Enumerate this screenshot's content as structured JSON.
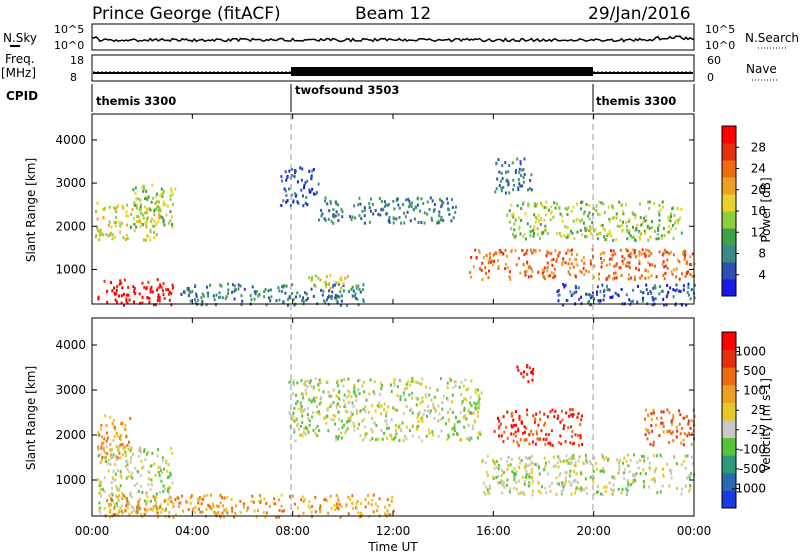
{
  "header": {
    "station": "Prince George (fitACF)",
    "beam": "Beam 12",
    "date": "29/Jan/2016"
  },
  "strip_labels": {
    "nsky": "N.Sky",
    "nsearch": "N.Search",
    "freq": "Freq.",
    "mhz": "[MHz]",
    "nave": "Nave",
    "cpid": "CPID",
    "nsky_ticks": [
      "10^5",
      "10^0"
    ],
    "freq_ticks": [
      "18",
      "8"
    ],
    "nave_ticks": [
      "60",
      "0"
    ]
  },
  "cpid_segments": [
    {
      "label": "themis 3300",
      "start_h": 0,
      "end_h": 8
    },
    {
      "label": "twofsound 3503",
      "start_h": 8,
      "end_h": 20
    },
    {
      "label": "themis 3300",
      "start_h": 20,
      "end_h": 24
    }
  ],
  "chart_data": [
    {
      "type": "heatmap",
      "name": "power",
      "xlabel": "Time UT",
      "ylabel": "Slant Range [km]",
      "xlim": [
        0,
        24
      ],
      "ylim": [
        200,
        4600
      ],
      "x_ticks": [
        "00:00",
        "04:00",
        "08:00",
        "12:00",
        "16:00",
        "20:00",
        "00:00"
      ],
      "y_ticks": [
        1000,
        2000,
        3000,
        4000
      ],
      "colorbar": {
        "label": "Power [dB]",
        "ticks": [
          4,
          8,
          12,
          16,
          20,
          24,
          28
        ],
        "colors": [
          "#1a1ae6",
          "#2f4fb0",
          "#3a8a8a",
          "#3ea04a",
          "#8ccf3a",
          "#e6d22a",
          "#f0a020",
          "#f06a10",
          "#e62e10",
          "#ff0000"
        ]
      },
      "regions": [
        {
          "t": [
            0.2,
            3.2
          ],
          "r": [
            200,
            800
          ],
          "level": 9
        },
        {
          "t": [
            0.1,
            2.7
          ],
          "r": [
            1700,
            2600
          ],
          "level": 5
        },
        {
          "t": [
            1.5,
            3.3
          ],
          "r": [
            2000,
            3000
          ],
          "level": 4
        },
        {
          "t": [
            3.5,
            11.0
          ],
          "r": [
            200,
            700
          ],
          "level": 2
        },
        {
          "t": [
            8.5,
            10.5
          ],
          "r": [
            600,
            900
          ],
          "level": 5
        },
        {
          "t": [
            7.5,
            9.0
          ],
          "r": [
            2500,
            3400
          ],
          "level": 1
        },
        {
          "t": [
            9.0,
            14.5
          ],
          "r": [
            2100,
            2700
          ],
          "level": 2
        },
        {
          "t": [
            15.0,
            24.0
          ],
          "r": [
            800,
            1500
          ],
          "level": 7
        },
        {
          "t": [
            16.5,
            23.5
          ],
          "r": [
            1700,
            2600
          ],
          "level": 4
        },
        {
          "t": [
            16.0,
            17.5
          ],
          "r": [
            2800,
            3600
          ],
          "level": 2
        },
        {
          "t": [
            18.5,
            24.0
          ],
          "r": [
            200,
            700
          ],
          "level": 1
        }
      ]
    },
    {
      "type": "heatmap",
      "name": "velocity",
      "xlabel": "Time UT",
      "ylabel": "Slant Range [km]",
      "xlim": [
        0,
        24
      ],
      "ylim": [
        200,
        4600
      ],
      "x_ticks": [
        "00:00",
        "04:00",
        "08:00",
        "12:00",
        "16:00",
        "20:00",
        "00:00"
      ],
      "y_ticks": [
        1000,
        2000,
        3000,
        4000
      ],
      "colorbar": {
        "label": "Velocity [m s-1]",
        "ticks": [
          1000,
          500,
          100,
          25,
          -25,
          -100,
          -500,
          -1000
        ],
        "colors": [
          "#1a3ae6",
          "#2a6ab0",
          "#2e9a78",
          "#5ac23a",
          "#c8c8c8",
          "#e6c828",
          "#f0a020",
          "#f06a10",
          "#e62e10",
          "#ff0000"
        ]
      },
      "regions": [
        {
          "t": [
            0.2,
            3.2
          ],
          "r": [
            300,
            1800
          ],
          "level": 4
        },
        {
          "t": [
            0.2,
            1.5
          ],
          "r": [
            1500,
            2500
          ],
          "level": 6
        },
        {
          "t": [
            7.8,
            15.5
          ],
          "r": [
            1900,
            3300
          ],
          "level": 4
        },
        {
          "t": [
            15.5,
            24.0
          ],
          "r": [
            700,
            1600
          ],
          "level": 4
        },
        {
          "t": [
            16.0,
            19.5
          ],
          "r": [
            1800,
            2600
          ],
          "level": 8
        },
        {
          "t": [
            16.8,
            17.6
          ],
          "r": [
            3200,
            3600
          ],
          "level": 9
        },
        {
          "t": [
            22.0,
            24.0
          ],
          "r": [
            1800,
            2600
          ],
          "level": 7
        },
        {
          "t": [
            0.5,
            12.0
          ],
          "r": [
            200,
            700
          ],
          "level": 6
        }
      ]
    }
  ]
}
